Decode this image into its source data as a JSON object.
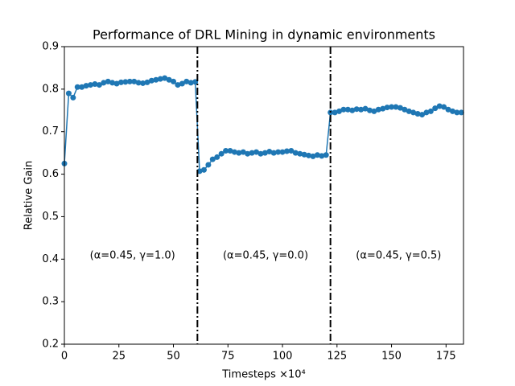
{
  "chart_data": {
    "type": "line",
    "title": "Performance of DRL Mining in dynamic environments",
    "xlabel": "Timesteps ×10⁴",
    "ylabel": "Relative Gain",
    "x": [
      0,
      2,
      4,
      6,
      8,
      10,
      12,
      14,
      16,
      18,
      20,
      22,
      24,
      26,
      28,
      30,
      32,
      34,
      36,
      38,
      40,
      42,
      44,
      46,
      48,
      50,
      52,
      54,
      56,
      58,
      60,
      62,
      64,
      66,
      68,
      70,
      72,
      74,
      76,
      78,
      80,
      82,
      84,
      86,
      88,
      90,
      92,
      94,
      96,
      98,
      100,
      102,
      104,
      106,
      108,
      110,
      112,
      114,
      116,
      118,
      120,
      122,
      124,
      126,
      128,
      130,
      132,
      134,
      136,
      138,
      140,
      142,
      144,
      146,
      148,
      150,
      152,
      154,
      156,
      158,
      160,
      162,
      164,
      166,
      168,
      170,
      172,
      174,
      176,
      178,
      180,
      182
    ],
    "series": [
      {
        "color": "#1f77b4",
        "values": [
          0.625,
          0.79,
          0.78,
          0.805,
          0.805,
          0.808,
          0.81,
          0.812,
          0.81,
          0.815,
          0.818,
          0.815,
          0.813,
          0.816,
          0.817,
          0.818,
          0.818,
          0.815,
          0.814,
          0.816,
          0.82,
          0.822,
          0.824,
          0.826,
          0.822,
          0.818,
          0.81,
          0.813,
          0.818,
          0.815,
          0.817,
          0.607,
          0.61,
          0.622,
          0.635,
          0.64,
          0.648,
          0.655,
          0.655,
          0.652,
          0.65,
          0.652,
          0.648,
          0.65,
          0.652,
          0.648,
          0.65,
          0.653,
          0.65,
          0.652,
          0.652,
          0.654,
          0.655,
          0.65,
          0.648,
          0.646,
          0.644,
          0.642,
          0.645,
          0.643,
          0.645,
          0.745,
          0.745,
          0.748,
          0.752,
          0.752,
          0.75,
          0.753,
          0.752,
          0.754,
          0.75,
          0.748,
          0.752,
          0.754,
          0.757,
          0.758,
          0.758,
          0.756,
          0.752,
          0.748,
          0.745,
          0.742,
          0.74,
          0.745,
          0.748,
          0.755,
          0.76,
          0.758,
          0.752,
          0.748,
          0.745,
          0.745
        ]
      }
    ],
    "vlines": [
      61,
      122
    ],
    "annotations": [
      "(α=0.45, γ=1.0)",
      "(α=0.45, γ=0.0)",
      "(α=0.45, γ=0.5)"
    ],
    "xlim": [
      0,
      183
    ],
    "ylim": [
      0.2,
      0.9
    ],
    "xticks": [
      0,
      25,
      50,
      75,
      100,
      125,
      150,
      175
    ],
    "yticks": [
      0.2,
      0.3,
      0.4,
      0.5,
      0.6,
      0.7,
      0.8,
      0.9
    ],
    "grid": false
  }
}
